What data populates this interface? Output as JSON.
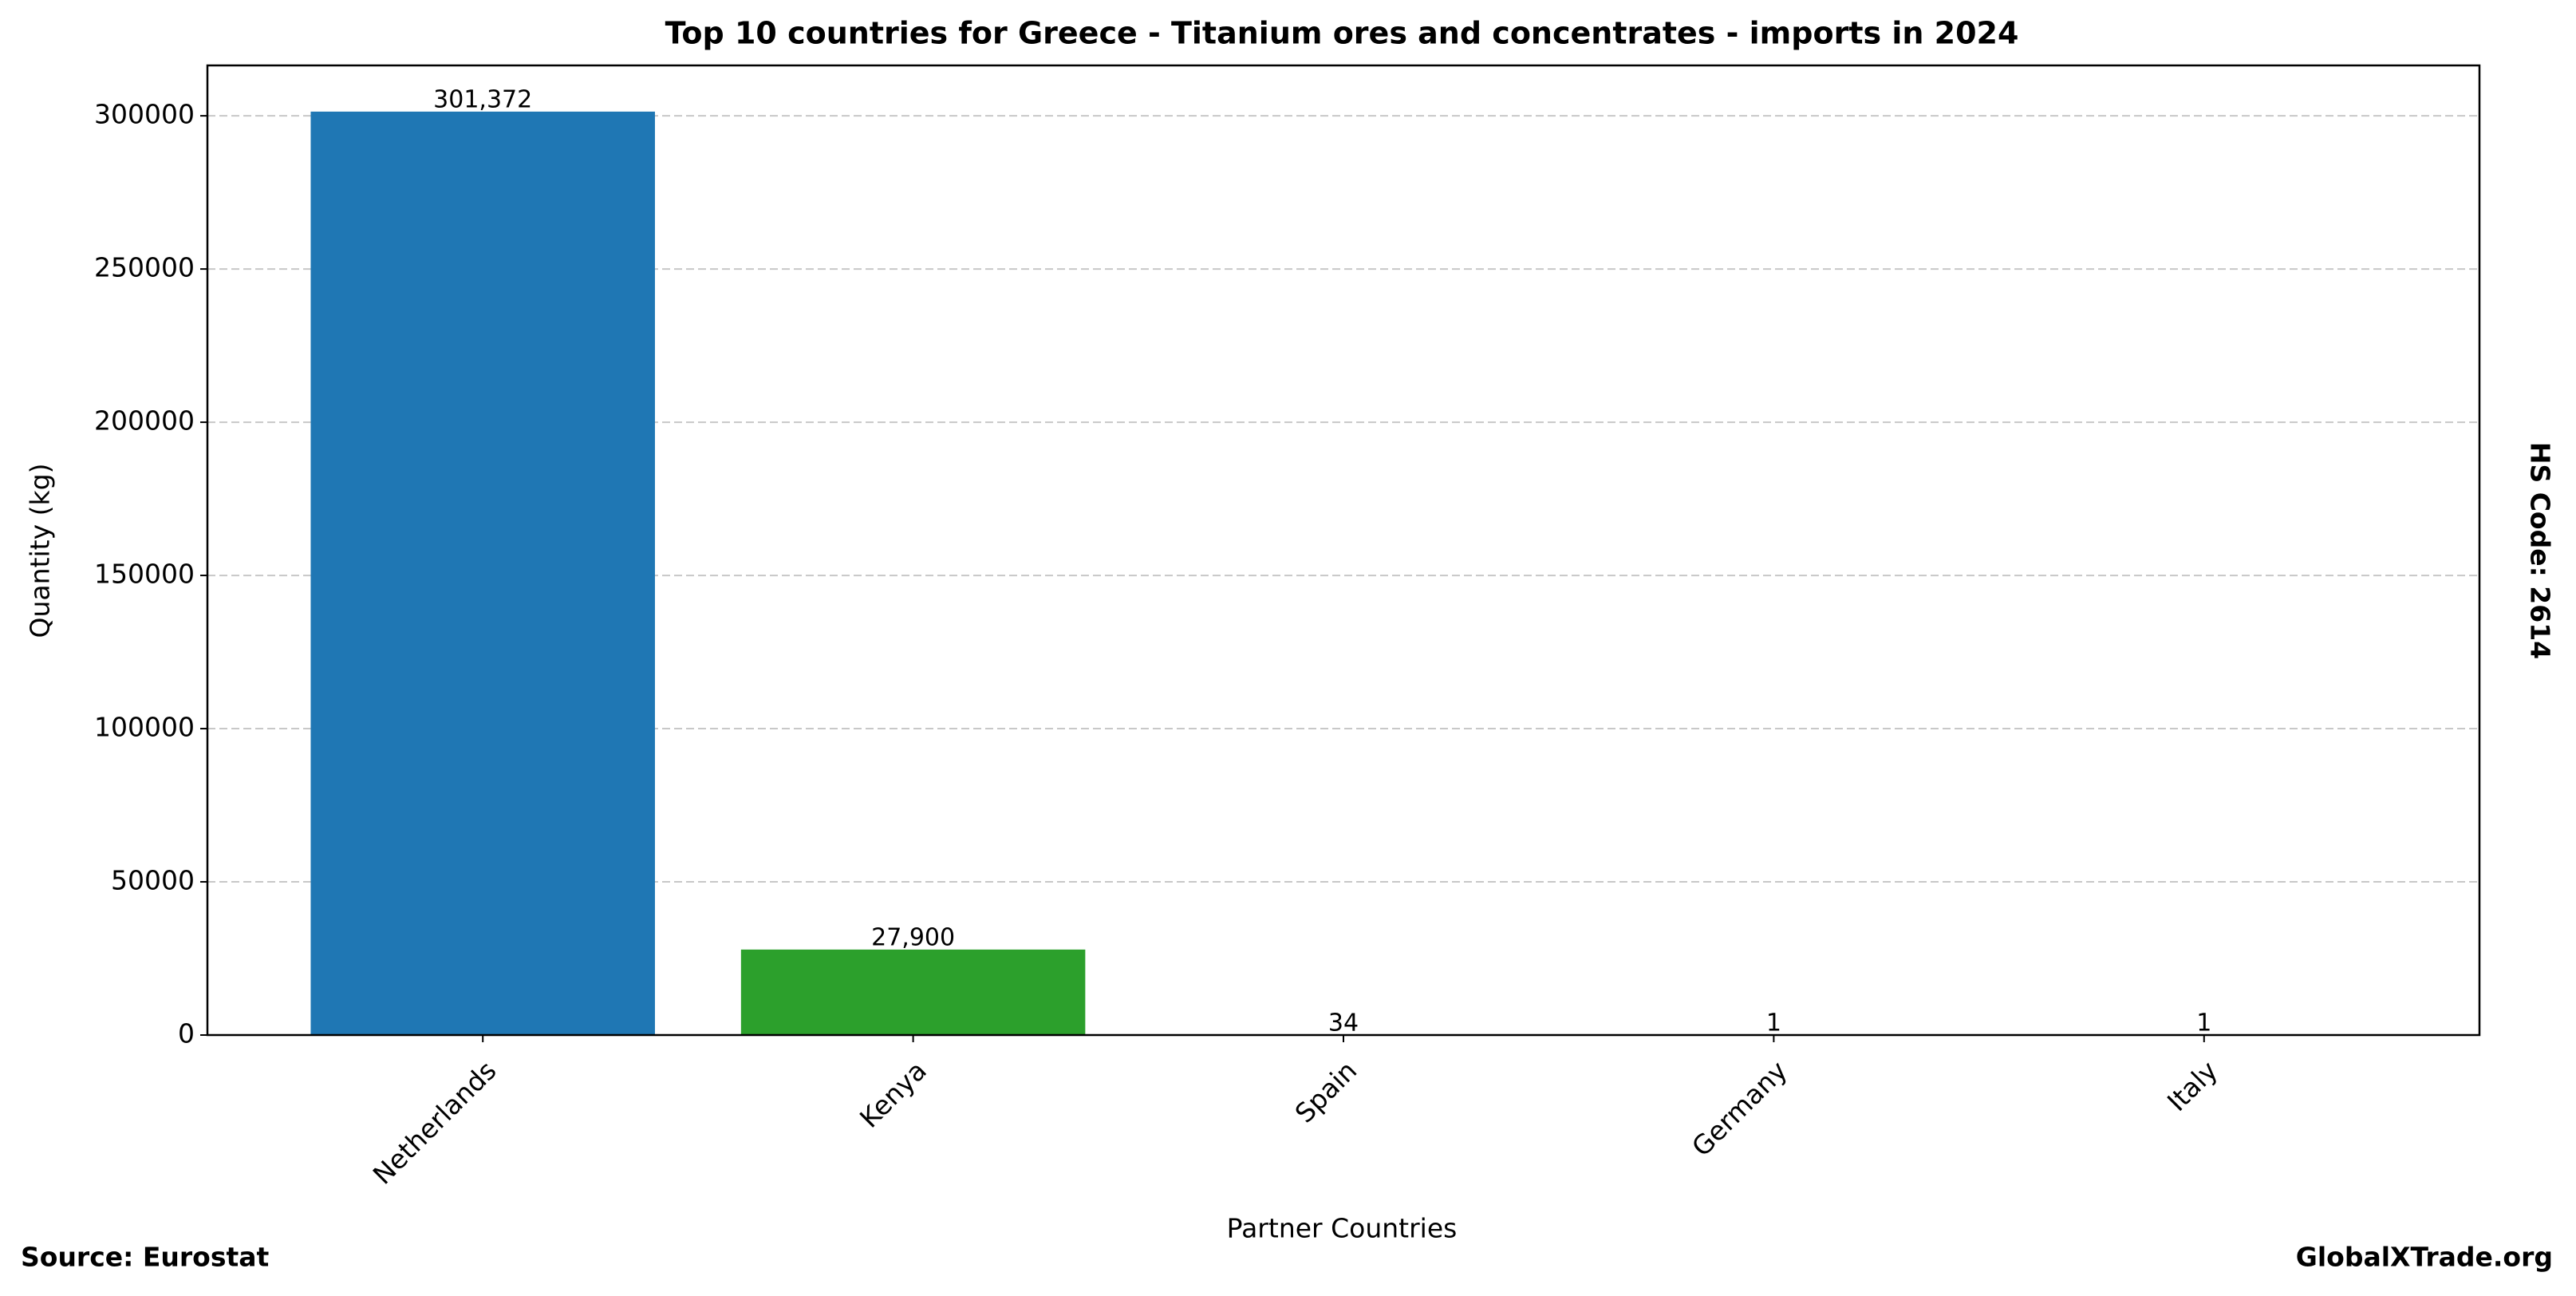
{
  "chart_data": {
    "type": "bar",
    "title": "Top 10 countries for Greece - Titanium ores and concentrates - imports in 2024",
    "x_label": "Partner Countries",
    "y_label": "Quantity (kg)",
    "side_note": "HS Code: 2614",
    "source": "Source: Eurostat",
    "brand": "GlobalXTrade.org",
    "categories": [
      "Netherlands",
      "Kenya",
      "Spain",
      "Germany",
      "Italy"
    ],
    "values": [
      301372,
      27900,
      34,
      1,
      1
    ],
    "value_labels": [
      "301,372",
      "27,900",
      "34",
      "1",
      "1"
    ],
    "colors": [
      "#1f77b4",
      "#2ca02c",
      "#d62728",
      "#9467bd",
      "#8c564b"
    ],
    "ylim": [
      0,
      316441
    ],
    "yticks": [
      0,
      50000,
      100000,
      150000,
      200000,
      250000,
      300000
    ],
    "grid": true
  }
}
